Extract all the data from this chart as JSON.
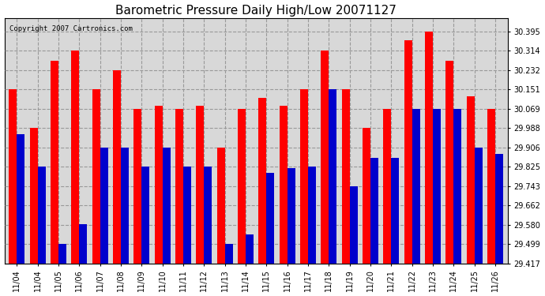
{
  "title": "Barometric Pressure Daily High/Low 20071127",
  "copyright": "Copyright 2007 Cartronics.com",
  "dates": [
    "11/04",
    "11/04",
    "11/05",
    "11/06",
    "11/07",
    "11/08",
    "11/09",
    "11/10",
    "11/11",
    "11/12",
    "11/13",
    "11/14",
    "11/15",
    "11/16",
    "11/17",
    "11/18",
    "11/19",
    "11/20",
    "11/21",
    "11/22",
    "11/23",
    "11/24",
    "11/25",
    "11/26"
  ],
  "highs": [
    30.151,
    29.988,
    30.27,
    30.314,
    30.151,
    30.232,
    30.069,
    30.082,
    30.069,
    30.082,
    29.906,
    30.069,
    30.114,
    30.082,
    30.151,
    30.314,
    30.151,
    29.988,
    30.069,
    30.357,
    30.395,
    30.27,
    30.12,
    30.069
  ],
  "lows": [
    29.96,
    29.825,
    29.499,
    29.582,
    29.906,
    29.906,
    29.825,
    29.906,
    29.825,
    29.825,
    29.499,
    29.54,
    29.8,
    29.82,
    29.825,
    30.151,
    29.743,
    29.862,
    29.862,
    30.069,
    30.069,
    30.069,
    29.906,
    29.88
  ],
  "yticks": [
    29.417,
    29.499,
    29.58,
    29.662,
    29.743,
    29.825,
    29.906,
    29.988,
    30.069,
    30.151,
    30.232,
    30.314,
    30.395
  ],
  "ymin": 29.417,
  "ymax": 30.45,
  "bar_width": 0.38,
  "high_color": "#ff0000",
  "low_color": "#0000cc",
  "bg_color": "#d8d8d8",
  "grid_color": "#999999",
  "title_fontsize": 11,
  "copyright_fontsize": 6.5,
  "tick_fontsize": 7
}
